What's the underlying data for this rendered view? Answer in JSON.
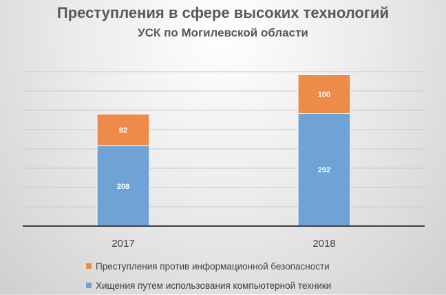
{
  "chart_data": {
    "type": "bar",
    "stacked": true,
    "title": "Преступления в сфере высоких технологий",
    "subtitle": "УСК по Могилевской области",
    "categories": [
      "2017",
      "2018"
    ],
    "series": [
      {
        "name": "Хищения путем использования компьютерной техники",
        "values": [
          208,
          292
        ],
        "color": "#6fa3d6"
      },
      {
        "name": "Преступления против информационной безопасности",
        "values": [
          82,
          100
        ],
        "color": "#ed8b4b"
      }
    ],
    "ylim": [
      0,
      400
    ],
    "ytick_step": 50,
    "grid": true,
    "legend": "bottom"
  }
}
